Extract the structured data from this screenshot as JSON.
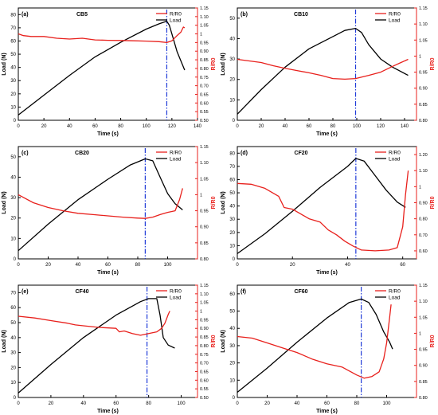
{
  "chart_data": [
    {
      "type": "line",
      "panel": "(a)",
      "title": "CB5",
      "xlabel": "Time (s)",
      "ylabel": "Load (N)",
      "y2label": "R/R0",
      "xlim": [
        0,
        140
      ],
      "xticks": [
        0,
        20,
        40,
        60,
        80,
        100,
        120,
        140
      ],
      "ylim": [
        0,
        85
      ],
      "yticks": [
        0,
        10,
        20,
        30,
        40,
        50,
        60,
        70,
        80
      ],
      "y2lim": [
        0.5,
        1.15
      ],
      "y2ticks": [
        0.5,
        0.55,
        0.6,
        0.65,
        0.7,
        0.75,
        0.8,
        0.85,
        0.9,
        0.95,
        1.0,
        1.05,
        1.1,
        1.15
      ],
      "legend_position": "top-right",
      "marker_x": 116,
      "series": [
        {
          "name": "Load",
          "axis": "left",
          "color": "#000000",
          "points": [
            [
              0,
              4
            ],
            [
              20,
              19
            ],
            [
              40,
              34
            ],
            [
              60,
              48
            ],
            [
              80,
              59
            ],
            [
              100,
              69
            ],
            [
              110,
              73
            ],
            [
              116,
              75
            ],
            [
              118,
              72
            ],
            [
              121,
              62
            ],
            [
              124,
              52
            ],
            [
              127,
              45
            ],
            [
              130,
              38
            ]
          ]
        },
        {
          "name": "R/R0",
          "axis": "right",
          "color": "#e8201c",
          "points": [
            [
              0,
              1.0
            ],
            [
              4,
              0.99
            ],
            [
              10,
              0.985
            ],
            [
              20,
              0.985
            ],
            [
              30,
              0.975
            ],
            [
              40,
              0.97
            ],
            [
              50,
              0.975
            ],
            [
              60,
              0.965
            ],
            [
              70,
              0.963
            ],
            [
              80,
              0.962
            ],
            [
              90,
              0.96
            ],
            [
              100,
              0.958
            ],
            [
              110,
              0.955
            ],
            [
              116,
              0.95
            ],
            [
              120,
              0.96
            ],
            [
              124,
              0.99
            ],
            [
              127,
              1.01
            ],
            [
              129,
              1.04
            ],
            [
              130,
              1.035
            ]
          ]
        }
      ]
    },
    {
      "type": "line",
      "panel": "(b)",
      "title": "CB10",
      "xlabel": "Time (s)",
      "ylabel": "Load (N)",
      "y2label": "R/R0",
      "xlim": [
        0,
        150
      ],
      "xticks": [
        0,
        20,
        40,
        60,
        80,
        100,
        120,
        140
      ],
      "ylim": [
        0,
        55
      ],
      "yticks": [
        0,
        10,
        20,
        30,
        40,
        50
      ],
      "y2lim": [
        0.8,
        1.15
      ],
      "y2ticks": [
        0.8,
        0.85,
        0.9,
        0.95,
        1.0,
        1.05,
        1.1,
        1.15
      ],
      "legend_position": "top-right",
      "marker_x": 99,
      "series": [
        {
          "name": "Load",
          "axis": "left",
          "color": "#000000",
          "points": [
            [
              0,
              3
            ],
            [
              20,
              15
            ],
            [
              40,
              26
            ],
            [
              60,
              35
            ],
            [
              80,
              41
            ],
            [
              90,
              44
            ],
            [
              99,
              45
            ],
            [
              104,
              43
            ],
            [
              110,
              37
            ],
            [
              120,
              30
            ],
            [
              130,
              26
            ],
            [
              143,
              22
            ]
          ]
        },
        {
          "name": "R/R0",
          "axis": "right",
          "color": "#e8201c",
          "points": [
            [
              0,
              0.99
            ],
            [
              10,
              0.985
            ],
            [
              20,
              0.98
            ],
            [
              30,
              0.97
            ],
            [
              40,
              0.962
            ],
            [
              50,
              0.955
            ],
            [
              60,
              0.948
            ],
            [
              70,
              0.94
            ],
            [
              80,
              0.93
            ],
            [
              90,
              0.928
            ],
            [
              99,
              0.93
            ],
            [
              110,
              0.94
            ],
            [
              120,
              0.95
            ],
            [
              130,
              0.968
            ],
            [
              137,
              0.98
            ],
            [
              143,
              0.99
            ]
          ]
        }
      ]
    },
    {
      "type": "line",
      "panel": "(c)",
      "title": "CB20",
      "xlabel": "Time (s)",
      "ylabel": "Load (N)",
      "y2label": "R/R0",
      "xlim": [
        0,
        120
      ],
      "xticks": [
        0,
        20,
        40,
        60,
        80,
        100
      ],
      "ylim": [
        0,
        55
      ],
      "yticks": [
        0,
        10,
        20,
        30,
        40,
        50
      ],
      "y2lim": [
        0.8,
        1.15
      ],
      "y2ticks": [
        0.8,
        0.85,
        0.9,
        0.95,
        1.0,
        1.05,
        1.1,
        1.15
      ],
      "legend_position": "top-right",
      "marker_x": 85,
      "series": [
        {
          "name": "Load",
          "axis": "left",
          "color": "#000000",
          "points": [
            [
              0,
              4
            ],
            [
              20,
              17
            ],
            [
              40,
              29
            ],
            [
              60,
              39
            ],
            [
              75,
              46
            ],
            [
              85,
              49
            ],
            [
              90,
              48
            ],
            [
              95,
              40
            ],
            [
              100,
              32
            ],
            [
              105,
              27
            ],
            [
              110,
              24
            ]
          ]
        },
        {
          "name": "R/R0",
          "axis": "right",
          "color": "#e8201c",
          "points": [
            [
              0,
              1.0
            ],
            [
              10,
              0.975
            ],
            [
              20,
              0.96
            ],
            [
              30,
              0.95
            ],
            [
              40,
              0.942
            ],
            [
              50,
              0.938
            ],
            [
              60,
              0.934
            ],
            [
              70,
              0.93
            ],
            [
              80,
              0.927
            ],
            [
              85,
              0.926
            ],
            [
              90,
              0.93
            ],
            [
              95,
              0.938
            ],
            [
              100,
              0.945
            ],
            [
              105,
              0.95
            ],
            [
              108,
              0.985
            ],
            [
              110,
              1.02
            ]
          ]
        }
      ]
    },
    {
      "type": "line",
      "panel": "(d)",
      "title": "CF20",
      "xlabel": "Time (s)",
      "ylabel": "Load (N)",
      "y2label": "R/R0",
      "xlim": [
        0,
        65
      ],
      "xticks": [
        0,
        20,
        40,
        60
      ],
      "ylim": [
        0,
        85
      ],
      "yticks": [
        0,
        10,
        20,
        30,
        40,
        50,
        60,
        70,
        80
      ],
      "y2lim": [
        0.55,
        1.25
      ],
      "y2ticks": [
        0.6,
        0.7,
        0.8,
        0.9,
        1.0,
        1.1,
        1.2
      ],
      "legend_position": "top-right",
      "marker_x": 43,
      "series": [
        {
          "name": "Load",
          "axis": "left",
          "color": "#000000",
          "points": [
            [
              0,
              4
            ],
            [
              10,
              19
            ],
            [
              20,
              36
            ],
            [
              30,
              54
            ],
            [
              40,
              70
            ],
            [
              43,
              76
            ],
            [
              46,
              74
            ],
            [
              50,
              63
            ],
            [
              54,
              52
            ],
            [
              58,
              43
            ],
            [
              61,
              39
            ]
          ]
        },
        {
          "name": "R/R0",
          "axis": "right",
          "color": "#e8201c",
          "points": [
            [
              0,
              1.02
            ],
            [
              5,
              1.015
            ],
            [
              10,
              0.99
            ],
            [
              15,
              0.94
            ],
            [
              17,
              0.87
            ],
            [
              20,
              0.86
            ],
            [
              23,
              0.83
            ],
            [
              26,
              0.8
            ],
            [
              30,
              0.78
            ],
            [
              33,
              0.73
            ],
            [
              36,
              0.7
            ],
            [
              39,
              0.66
            ],
            [
              42,
              0.63
            ],
            [
              45,
              0.605
            ],
            [
              50,
              0.6
            ],
            [
              55,
              0.605
            ],
            [
              58,
              0.62
            ],
            [
              60,
              0.75
            ],
            [
              61,
              0.95
            ],
            [
              62,
              1.1
            ]
          ]
        }
      ]
    },
    {
      "type": "line",
      "panel": "(e)",
      "title": "CF40",
      "xlabel": "Time (s)",
      "ylabel": "Load (N)",
      "y2label": "R/R0",
      "xlim": [
        0,
        110
      ],
      "xticks": [
        0,
        20,
        40,
        60,
        80,
        100
      ],
      "ylim": [
        0,
        75
      ],
      "yticks": [
        0,
        10,
        20,
        30,
        40,
        50,
        60,
        70
      ],
      "y2lim": [
        0.5,
        1.15
      ],
      "y2ticks": [
        0.5,
        0.55,
        0.6,
        0.65,
        0.7,
        0.75,
        0.8,
        0.85,
        0.9,
        0.95,
        1.0,
        1.05,
        1.1,
        1.15
      ],
      "legend_position": "top-right",
      "marker_x": 79,
      "series": [
        {
          "name": "Load",
          "axis": "left",
          "color": "#000000",
          "points": [
            [
              0,
              3
            ],
            [
              20,
              22
            ],
            [
              40,
              40
            ],
            [
              60,
              55
            ],
            [
              75,
              64
            ],
            [
              80,
              66
            ],
            [
              85,
              66
            ],
            [
              87,
              55
            ],
            [
              89,
              40
            ],
            [
              92,
              35
            ],
            [
              96,
              33
            ]
          ]
        },
        {
          "name": "R/R0",
          "axis": "right",
          "color": "#e8201c",
          "points": [
            [
              0,
              0.97
            ],
            [
              10,
              0.96
            ],
            [
              20,
              0.945
            ],
            [
              30,
              0.93
            ],
            [
              35,
              0.92
            ],
            [
              40,
              0.915
            ],
            [
              50,
              0.905
            ],
            [
              60,
              0.9
            ],
            [
              62,
              0.88
            ],
            [
              65,
              0.885
            ],
            [
              70,
              0.87
            ],
            [
              75,
              0.86
            ],
            [
              80,
              0.87
            ],
            [
              85,
              0.88
            ],
            [
              88,
              0.9
            ],
            [
              90,
              0.93
            ],
            [
              92,
              0.98
            ],
            [
              93,
              1.0
            ]
          ]
        }
      ]
    },
    {
      "type": "line",
      "panel": "(f)",
      "title": "CF60",
      "xlabel": "Time (s)",
      "ylabel": "Load (N)",
      "y2label": "R/R0",
      "xlim": [
        0,
        120
      ],
      "xticks": [
        0,
        20,
        40,
        60,
        80,
        100
      ],
      "ylim": [
        0,
        65
      ],
      "yticks": [
        0,
        10,
        20,
        30,
        40,
        50,
        60
      ],
      "y2lim": [
        0.8,
        1.15
      ],
      "y2ticks": [
        0.8,
        0.85,
        0.9,
        0.95,
        1.0,
        1.05,
        1.1,
        1.15
      ],
      "legend_position": "top-right",
      "marker_x": 83,
      "series": [
        {
          "name": "Load",
          "axis": "left",
          "color": "#000000",
          "points": [
            [
              0,
              3
            ],
            [
              20,
              17
            ],
            [
              40,
              32
            ],
            [
              60,
              46
            ],
            [
              75,
              55
            ],
            [
              83,
              57
            ],
            [
              88,
              55
            ],
            [
              93,
              48
            ],
            [
              98,
              38
            ],
            [
              102,
              32
            ],
            [
              104,
              28
            ]
          ]
        },
        {
          "name": "R/R0",
          "axis": "right",
          "color": "#e8201c",
          "points": [
            [
              0,
              0.99
            ],
            [
              10,
              0.985
            ],
            [
              20,
              0.97
            ],
            [
              30,
              0.955
            ],
            [
              40,
              0.94
            ],
            [
              50,
              0.92
            ],
            [
              60,
              0.905
            ],
            [
              70,
              0.895
            ],
            [
              80,
              0.87
            ],
            [
              85,
              0.86
            ],
            [
              90,
              0.865
            ],
            [
              95,
              0.88
            ],
            [
              98,
              0.92
            ],
            [
              100,
              0.97
            ],
            [
              102,
              1.05
            ],
            [
              103,
              1.09
            ]
          ]
        }
      ]
    }
  ]
}
